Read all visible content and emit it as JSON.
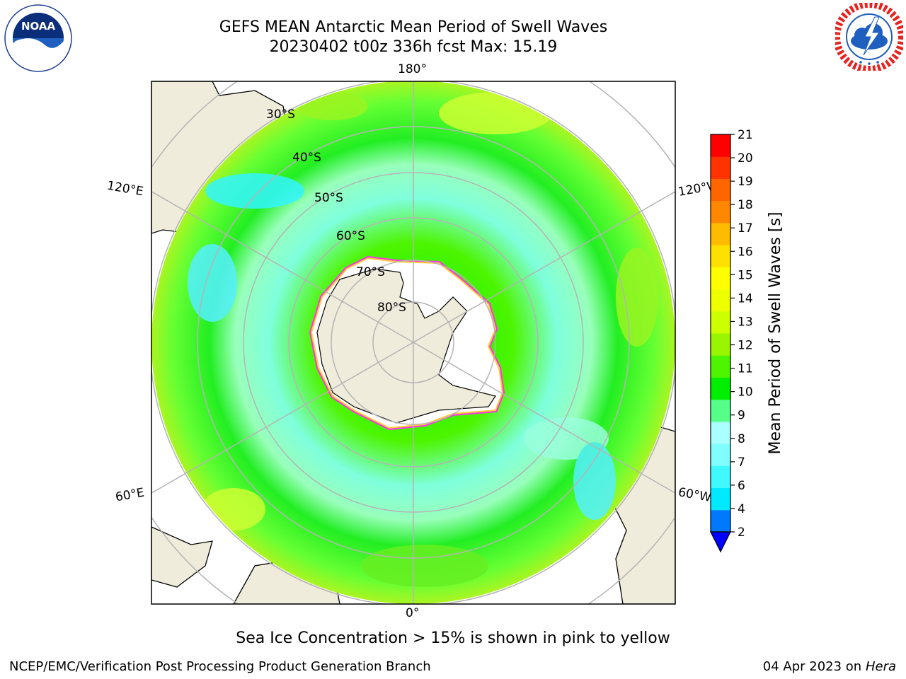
{
  "header": {
    "title_line1": "GEFS MEAN Antarctic Mean Period of Swell Waves",
    "title_line2": "20230402 t00z 336h fcst   Max: 15.19"
  },
  "logos": {
    "left": {
      "name": "NOAA",
      "text": "NOAA",
      "ring_text": "NATIONAL OCEANIC AND ATMOSPHERIC ADMINISTRATION · U.S. DEPARTMENT OF COMMERCE"
    },
    "right": {
      "name": "National Weather Service",
      "ring_text": "NATIONAL WEATHER SERVICE"
    }
  },
  "map": {
    "projection": "south polar stereographic",
    "longitude_labels": {
      "top": "180°",
      "bottom": "0°",
      "upper_left": "120°E",
      "lower_left": "60°E",
      "upper_right": "120°W",
      "lower_right": "60°W"
    },
    "latitude_labels": [
      "30°S",
      "40°S",
      "50°S",
      "60°S",
      "70°S",
      "80°S"
    ],
    "colors": {
      "land": "#efecdc",
      "ice": "#ffffff",
      "ice_edge_outer": "#ff33ee",
      "ice_edge_inner": "#ffcc33",
      "grid": "#b4b4b4"
    }
  },
  "colorbar": {
    "label": "Mean Period of Swell Waves [s]",
    "ticks": [
      "2",
      "4",
      "6",
      "7",
      "8",
      "9",
      "10",
      "11",
      "12",
      "13",
      "14",
      "15",
      "16",
      "17",
      "18",
      "19",
      "20",
      "21"
    ],
    "colors": [
      "#0079ff",
      "#00e9ff",
      "#3ff9ff",
      "#7ffdff",
      "#aaffff",
      "#55ff88",
      "#00ee00",
      "#4df500",
      "#99f500",
      "#ccff00",
      "#eeff00",
      "#ffff00",
      "#ffe000",
      "#ffbb00",
      "#ff8800",
      "#ff6600",
      "#ff3300",
      "#ff0000"
    ],
    "extend_min_color": "#0000ff"
  },
  "subtitle": "Sea Ice Concentration > 15% is shown in pink to yellow",
  "footer": {
    "left": "NCEP/EMC/Verification Post Processing Product Generation Branch",
    "right_date": "04 Apr 2023 on ",
    "right_machine": "Hera"
  }
}
